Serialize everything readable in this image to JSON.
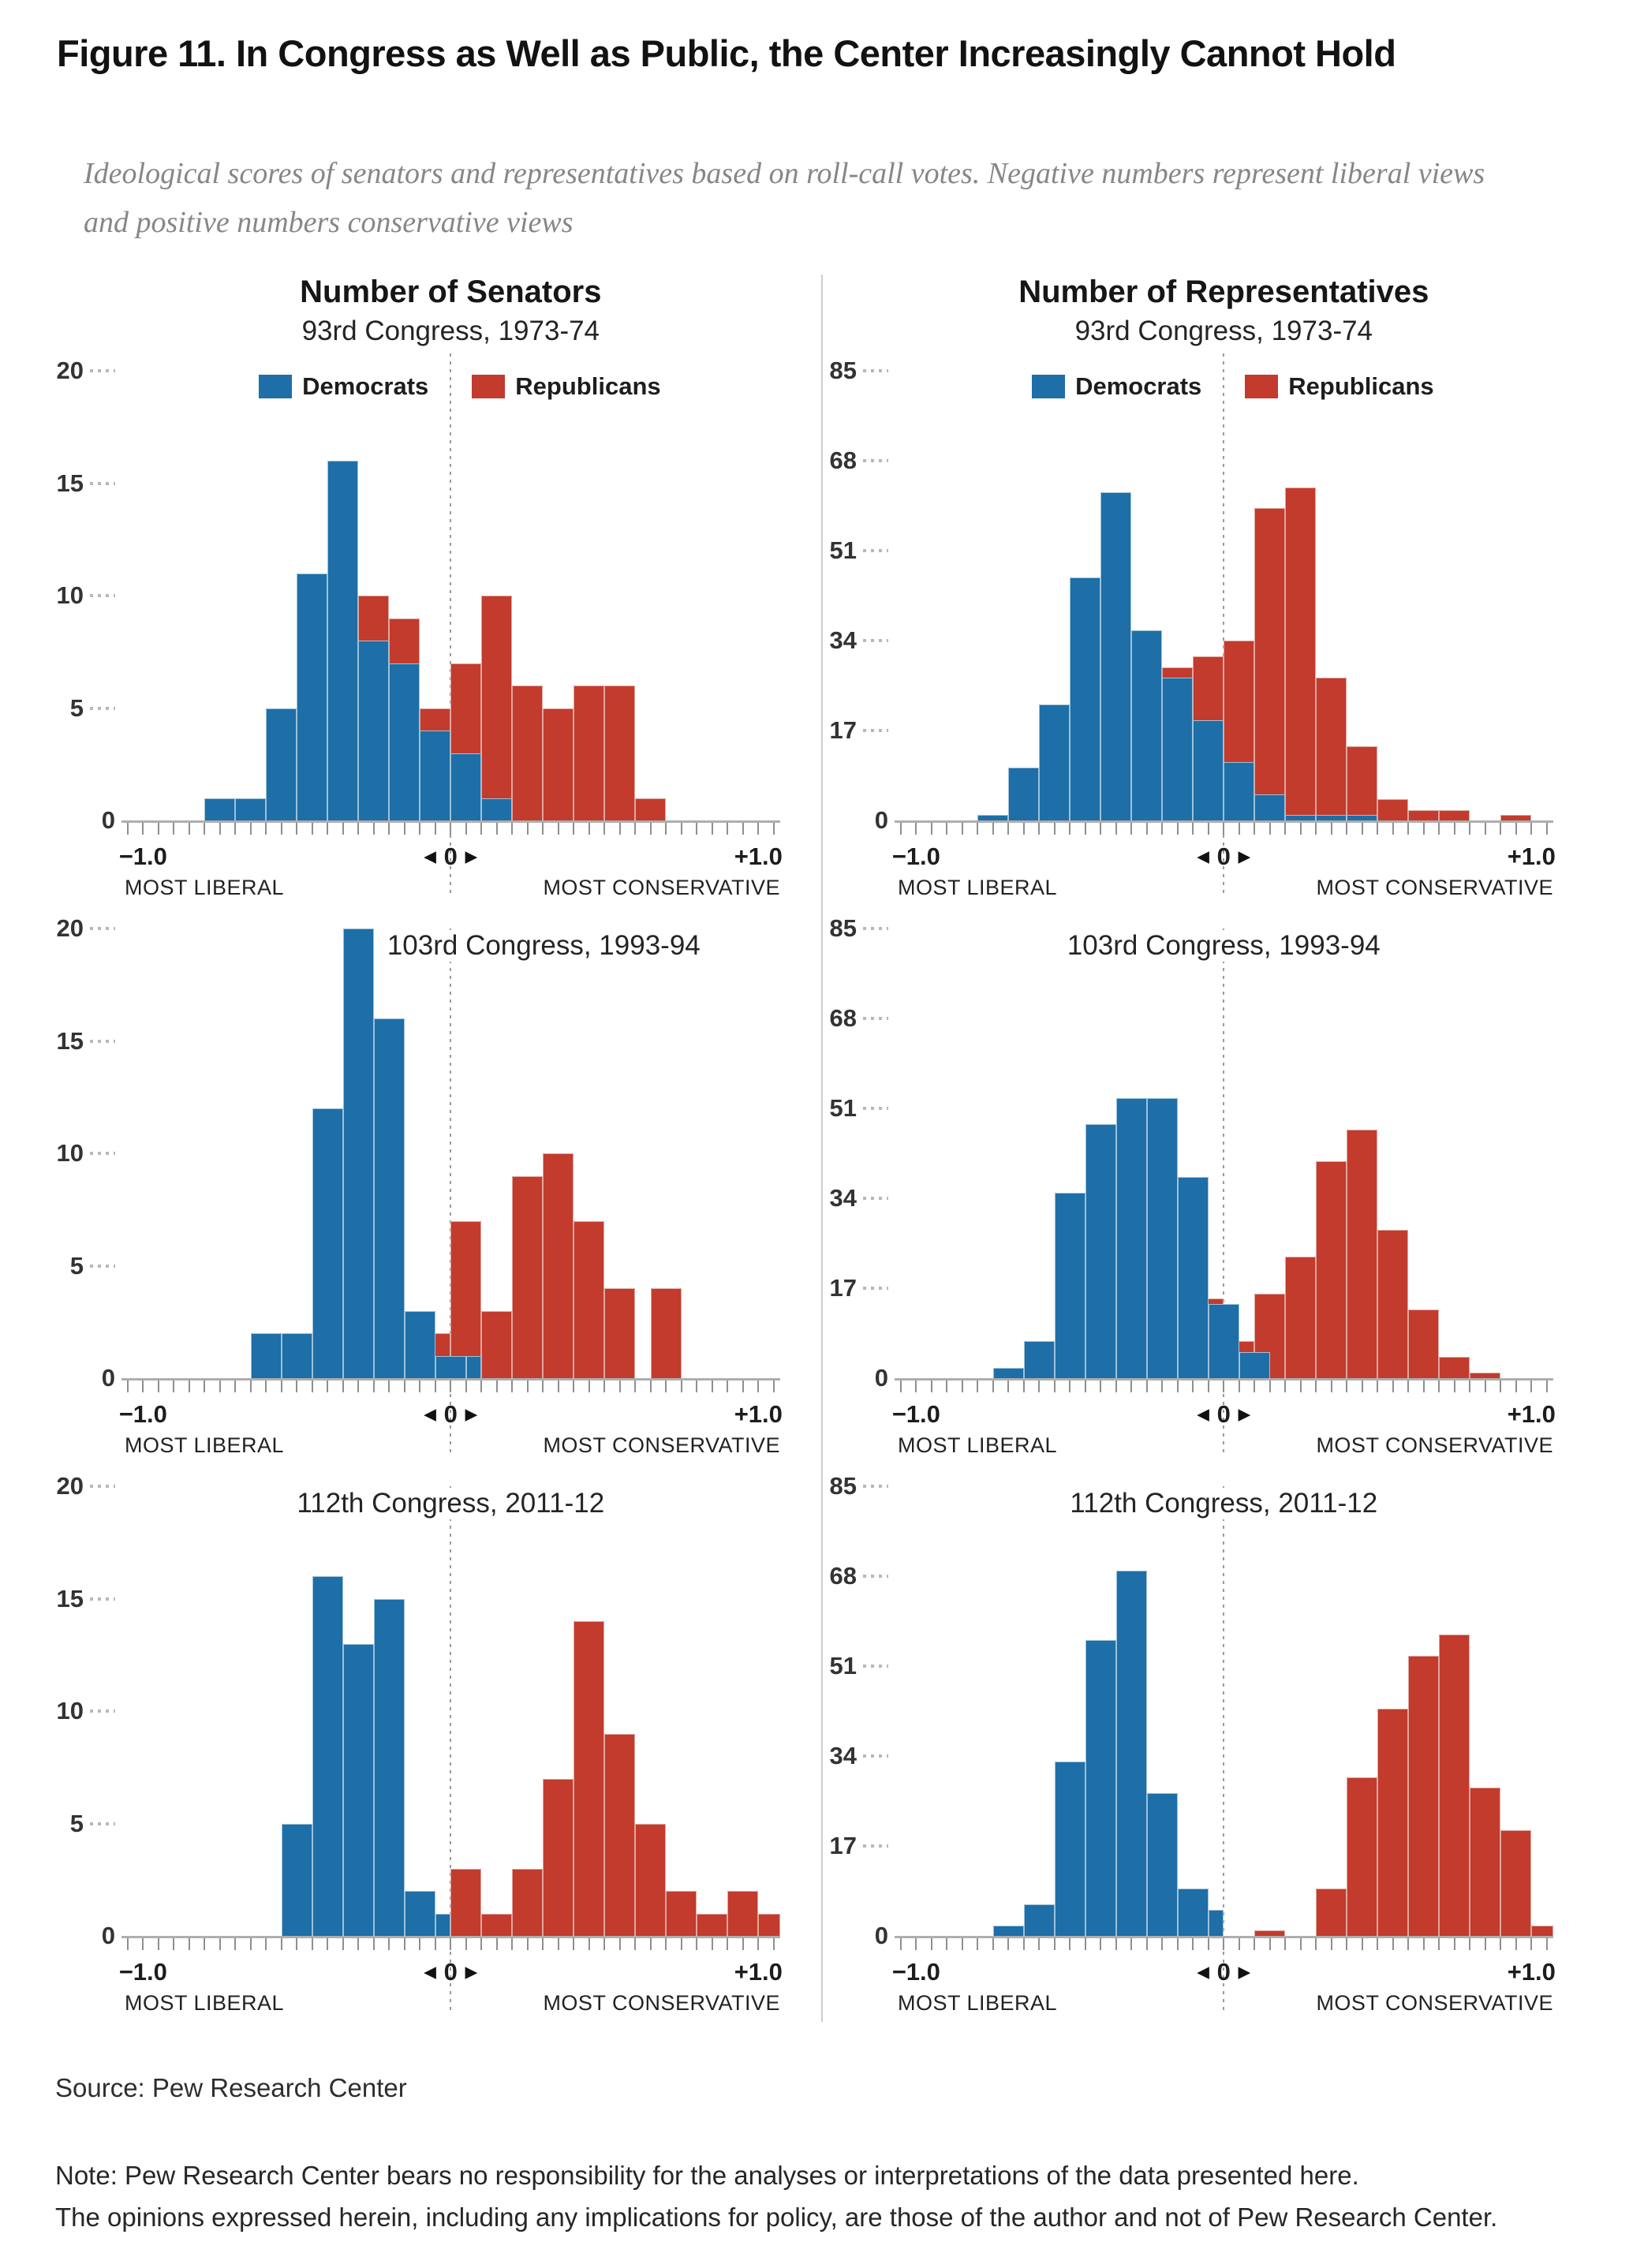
{
  "page": {
    "title": "Figure 11. In Congress as Well as Public, the Center Increasingly Cannot Hold",
    "subtitle": "Ideological scores of senators and representatives based on roll-call votes. Negative numbers represent liberal views and positive numbers conservative views",
    "source": "Source: Pew Research Center",
    "note_line1": "Note: Pew Research Center bears no responsibility for the analyses or interpretations of the data presented here.",
    "note_line2": "The opinions expressed herein, including any implications for policy, are those of the author and not of Pew Research Center."
  },
  "colors": {
    "democrat": "#1e6ea7",
    "republican": "#c23b2d",
    "axis": "#aeaeae",
    "gray_text": "#85878a"
  },
  "legend": {
    "democrats": "Democrats",
    "republicans": "Republicans"
  },
  "axis": {
    "min_label": "−1.0",
    "zero_label": "0",
    "max_label": "+1.0",
    "left_arrow": "◀",
    "right_arrow": "▶",
    "left_caption": "MOST LIBERAL",
    "right_caption": "MOST CONSERVATIVE",
    "x_range": [
      -1.0,
      1.0
    ],
    "tick_step": 0.05
  },
  "chart_data": [
    {
      "name": "senators-93rd",
      "type": "histogram",
      "row": 0,
      "col": 0,
      "title": "Number of Senators",
      "subtitle": "93rd Congress, 1973-74",
      "show_legend": true,
      "inner_title": null,
      "title_dx": 0,
      "ymax": 20,
      "yticks": [
        20,
        15,
        10,
        5,
        0
      ],
      "bin_width": 0.1,
      "series": [
        {
          "name": "Democrats",
          "party": "dem",
          "bars": [
            [
              -0.8,
              1
            ],
            [
              -0.7,
              1
            ],
            [
              -0.6,
              5
            ],
            [
              -0.5,
              11
            ],
            [
              -0.4,
              16
            ],
            [
              -0.3,
              8
            ],
            [
              -0.2,
              7
            ],
            [
              -0.1,
              4
            ],
            [
              0,
              3
            ],
            [
              0.1,
              1
            ]
          ]
        },
        {
          "name": "Republicans",
          "party": "rep",
          "bars": [
            [
              -0.3,
              10
            ],
            [
              -0.2,
              9
            ],
            [
              -0.1,
              5
            ],
            [
              0,
              7
            ],
            [
              0.1,
              10
            ],
            [
              0.2,
              6
            ],
            [
              0.3,
              5
            ],
            [
              0.4,
              6
            ],
            [
              0.5,
              6
            ],
            [
              0.6,
              1
            ]
          ]
        }
      ]
    },
    {
      "name": "representatives-93rd",
      "type": "histogram",
      "row": 0,
      "col": 1,
      "title": "Number of Representatives",
      "subtitle": "93rd Congress, 1973-74",
      "show_legend": true,
      "inner_title": null,
      "title_dx": 0,
      "ymax": 85,
      "yticks": [
        85,
        68,
        51,
        34,
        17,
        0
      ],
      "bin_width": 0.1,
      "series": [
        {
          "name": "Democrats",
          "party": "dem",
          "bars": [
            [
              -0.8,
              1
            ],
            [
              -0.7,
              10
            ],
            [
              -0.6,
              22
            ],
            [
              -0.5,
              46
            ],
            [
              -0.4,
              62
            ],
            [
              -0.3,
              36
            ],
            [
              -0.2,
              27
            ],
            [
              -0.1,
              19
            ],
            [
              0,
              11
            ],
            [
              0.1,
              5
            ],
            [
              0.2,
              1
            ],
            [
              0.3,
              1
            ],
            [
              0.4,
              1
            ]
          ]
        },
        {
          "name": "Republicans",
          "party": "rep",
          "bars": [
            [
              -0.2,
              29
            ],
            [
              -0.1,
              31
            ],
            [
              0,
              34
            ],
            [
              0.1,
              59
            ],
            [
              0.2,
              63
            ],
            [
              0.3,
              27
            ],
            [
              0.4,
              14
            ],
            [
              0.5,
              4
            ],
            [
              0.6,
              2
            ],
            [
              0.7,
              2
            ],
            [
              0.9,
              1
            ]
          ]
        }
      ]
    },
    {
      "name": "senators-103rd",
      "type": "histogram",
      "row": 1,
      "col": 0,
      "title": null,
      "subtitle": null,
      "show_legend": false,
      "inner_title": "103rd Congress, 1993-94",
      "title_dx": 118,
      "ymax": 20,
      "yticks": [
        20,
        15,
        10,
        5,
        0
      ],
      "bin_width": 0.1,
      "series": [
        {
          "name": "Democrats",
          "party": "dem",
          "bars": [
            [
              -0.65,
              2
            ],
            [
              -0.55,
              2
            ],
            [
              -0.45,
              12
            ],
            [
              -0.35,
              20
            ],
            [
              -0.25,
              16
            ],
            [
              -0.15,
              3
            ],
            [
              -0.05,
              1
            ],
            [
              0.05,
              1,
              0.05
            ]
          ]
        },
        {
          "name": "Republicans",
          "party": "rep",
          "bars": [
            [
              -0.1,
              2
            ],
            [
              0,
              7
            ],
            [
              0.1,
              3
            ],
            [
              0.2,
              9
            ],
            [
              0.3,
              10
            ],
            [
              0.4,
              7
            ],
            [
              0.5,
              4
            ],
            [
              0.65,
              4
            ]
          ]
        }
      ]
    },
    {
      "name": "representatives-103rd",
      "type": "histogram",
      "row": 1,
      "col": 1,
      "title": null,
      "subtitle": null,
      "show_legend": false,
      "inner_title": "103rd Congress, 1993-94",
      "title_dx": 0,
      "ymax": 85,
      "yticks": [
        85,
        68,
        51,
        34,
        17,
        0
      ],
      "bin_width": 0.1,
      "series": [
        {
          "name": "Democrats",
          "party": "dem",
          "bars": [
            [
              -0.75,
              2
            ],
            [
              -0.65,
              7
            ],
            [
              -0.55,
              35
            ],
            [
              -0.45,
              48
            ],
            [
              -0.35,
              53
            ],
            [
              -0.25,
              53
            ],
            [
              -0.15,
              38
            ],
            [
              -0.05,
              14
            ],
            [
              0.05,
              5
            ]
          ]
        },
        {
          "name": "Republicans",
          "party": "rep",
          "bars": [
            [
              -0.1,
              15
            ],
            [
              0,
              7
            ],
            [
              0.1,
              16
            ],
            [
              0.2,
              23
            ],
            [
              0.3,
              41
            ],
            [
              0.4,
              47
            ],
            [
              0.5,
              28
            ],
            [
              0.6,
              13
            ],
            [
              0.7,
              4
            ],
            [
              0.8,
              1
            ]
          ]
        }
      ]
    },
    {
      "name": "senators-112th",
      "type": "histogram",
      "row": 2,
      "col": 0,
      "title": null,
      "subtitle": null,
      "show_legend": false,
      "inner_title": "112th Congress, 2011-12",
      "title_dx": 0,
      "ymax": 20,
      "yticks": [
        20,
        15,
        10,
        5,
        0
      ],
      "bin_width": 0.1,
      "series": [
        {
          "name": "Democrats",
          "party": "dem",
          "bars": [
            [
              -0.55,
              5
            ],
            [
              -0.45,
              16
            ],
            [
              -0.35,
              13
            ],
            [
              -0.25,
              15
            ],
            [
              -0.15,
              2
            ],
            [
              -0.05,
              1,
              0.05
            ]
          ]
        },
        {
          "name": "Republicans",
          "party": "rep",
          "bars": [
            [
              0,
              3
            ],
            [
              0.1,
              1
            ],
            [
              0.2,
              3
            ],
            [
              0.3,
              7
            ],
            [
              0.4,
              14
            ],
            [
              0.5,
              9
            ],
            [
              0.6,
              5
            ],
            [
              0.7,
              2
            ],
            [
              0.8,
              1
            ],
            [
              0.9,
              2
            ],
            [
              1.0,
              1,
              0.07
            ]
          ]
        }
      ]
    },
    {
      "name": "representatives-112th",
      "type": "histogram",
      "row": 2,
      "col": 1,
      "title": null,
      "subtitle": null,
      "show_legend": false,
      "inner_title": "112th Congress, 2011-12",
      "title_dx": 0,
      "ymax": 85,
      "yticks": [
        85,
        68,
        51,
        34,
        17,
        0
      ],
      "bin_width": 0.1,
      "series": [
        {
          "name": "Democrats",
          "party": "dem",
          "bars": [
            [
              -0.75,
              2
            ],
            [
              -0.65,
              6
            ],
            [
              -0.55,
              33
            ],
            [
              -0.45,
              56
            ],
            [
              -0.35,
              69
            ],
            [
              -0.25,
              27
            ],
            [
              -0.15,
              9
            ],
            [
              -0.05,
              5,
              0.05
            ]
          ]
        },
        {
          "name": "Republicans",
          "party": "rep",
          "bars": [
            [
              0.1,
              1
            ],
            [
              0.3,
              9
            ],
            [
              0.4,
              30
            ],
            [
              0.5,
              43
            ],
            [
              0.6,
              53
            ],
            [
              0.7,
              57
            ],
            [
              0.8,
              28
            ],
            [
              0.9,
              20
            ],
            [
              1.0,
              2,
              0.07
            ]
          ]
        }
      ]
    }
  ]
}
